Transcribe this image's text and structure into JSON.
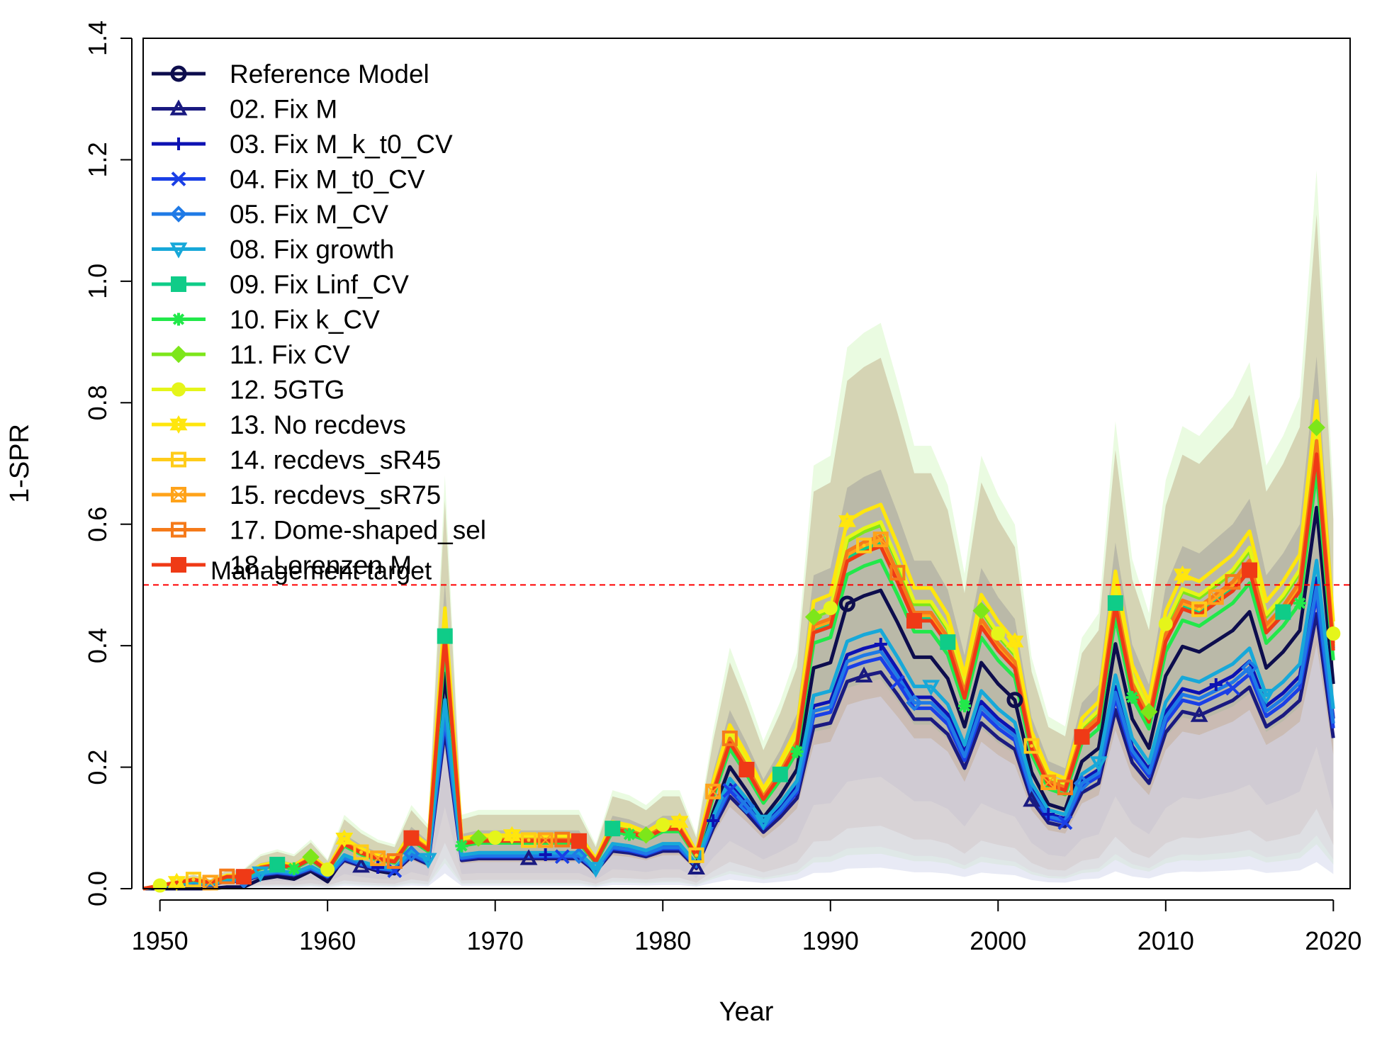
{
  "chart_data": {
    "type": "line",
    "xlabel": "Year",
    "ylabel": "1-SPR",
    "xlim": [
      1949,
      2021
    ],
    "ylim": [
      0,
      1.4
    ],
    "xticks": [
      1950,
      1960,
      1970,
      1980,
      1990,
      2000,
      2010,
      2020
    ],
    "yticks": [
      0.0,
      0.2,
      0.4,
      0.6,
      0.8,
      1.0,
      1.2,
      1.4
    ],
    "xtick_labels": [
      "1950",
      "1960",
      "1970",
      "1980",
      "1990",
      "2000",
      "2010",
      "2020"
    ],
    "ytick_labels": [
      "0.0",
      "0.2",
      "0.4",
      "0.6",
      "0.8",
      "1.0",
      "1.2",
      "1.4"
    ],
    "legend_position": "top-left",
    "reference_line": {
      "y": 0.5,
      "label": "Management target",
      "color": "#ff0000"
    },
    "x": [
      1949,
      1950,
      1951,
      1952,
      1953,
      1954,
      1955,
      1956,
      1957,
      1958,
      1959,
      1960,
      1961,
      1962,
      1963,
      1964,
      1965,
      1966,
      1967,
      1968,
      1969,
      1970,
      1971,
      1972,
      1973,
      1974,
      1975,
      1976,
      1977,
      1978,
      1979,
      1980,
      1981,
      1982,
      1983,
      1984,
      1985,
      1986,
      1987,
      1988,
      1989,
      1990,
      1991,
      1992,
      1993,
      1994,
      1995,
      1996,
      1997,
      1998,
      1999,
      2000,
      2001,
      2002,
      2003,
      2004,
      2005,
      2006,
      2007,
      2008,
      2009,
      2010,
      2011,
      2012,
      2013,
      2014,
      2015,
      2016,
      2017,
      2018,
      2019,
      2020
    ],
    "base_profile": [
      0.0,
      0.005,
      0.01,
      0.015,
      0.01,
      0.02,
      0.02,
      0.035,
      0.04,
      0.035,
      0.05,
      0.03,
      0.075,
      0.06,
      0.05,
      0.045,
      0.085,
      0.065,
      0.42,
      0.075,
      0.08,
      0.08,
      0.08,
      0.08,
      0.08,
      0.08,
      0.08,
      0.045,
      0.1,
      0.095,
      0.085,
      0.1,
      0.1,
      0.055,
      0.16,
      0.245,
      0.2,
      0.15,
      0.19,
      0.24,
      0.43,
      0.44,
      0.55,
      0.565,
      0.575,
      0.515,
      0.45,
      0.45,
      0.41,
      0.32,
      0.44,
      0.4,
      0.37,
      0.235,
      0.175,
      0.165,
      0.255,
      0.28,
      0.475,
      0.335,
      0.28,
      0.415,
      0.47,
      0.46,
      0.48,
      0.5,
      0.535,
      0.43,
      0.46,
      0.5,
      0.73,
      0.4
    ],
    "series": [
      {
        "name": "Reference Model",
        "color": "#0d0d4d",
        "marker": "circle",
        "scale": 0.88,
        "offset": -0.015,
        "markers_at": [
          1991,
          2001
        ]
      },
      {
        "name": "02. Fix M",
        "color": "#1a1a80",
        "marker": "triangle",
        "scale": 0.62,
        "offset": 0.0,
        "markers_at": [
          1962,
          1972,
          1982,
          1992,
          2002,
          2012
        ]
      },
      {
        "name": "03. Fix M_k_t0_CV",
        "color": "#0d12b3",
        "marker": "plus",
        "scale": 0.7,
        "offset": 0.0,
        "markers_at": [
          1963,
          1973,
          1983,
          1993,
          2003,
          2013
        ]
      },
      {
        "name": "04. Fix M_t0_CV",
        "color": "#1a3fe6",
        "marker": "x",
        "scale": 0.66,
        "offset": 0.0,
        "markers_at": [
          1964,
          1974,
          1984,
          1994,
          2004,
          2014
        ]
      },
      {
        "name": "05. Fix M_CV",
        "color": "#1f7ae6",
        "marker": "diamond",
        "scale": 0.68,
        "offset": 0.0,
        "markers_at": [
          1955,
          1965,
          1975,
          1985,
          1995,
          2005,
          2015
        ]
      },
      {
        "name": "08. Fix growth",
        "color": "#17a8d9",
        "marker": "triangle-down",
        "scale": 0.74,
        "offset": 0.0,
        "markers_at": [
          1956,
          1966,
          1976,
          1986,
          1996,
          2006,
          2016
        ]
      },
      {
        "name": "09. Fix Linf_CV",
        "color": "#0fcc88",
        "marker": "square-filled",
        "scale": 0.99,
        "offset": 0.0,
        "markers_at": [
          1957,
          1967,
          1977,
          1987,
          1997,
          2007,
          2017
        ]
      },
      {
        "name": "10. Fix k_CV",
        "color": "#22e84a",
        "marker": "asterisk",
        "scale": 0.94,
        "offset": 0.0,
        "markers_at": [
          1958,
          1968,
          1978,
          1988,
          1998,
          2008,
          2018
        ]
      },
      {
        "name": "11. Fix CV",
        "color": "#7de61a",
        "marker": "diamond-filled",
        "scale": 1.04,
        "offset": 0.0,
        "markers_at": [
          1959,
          1969,
          1979,
          1989,
          1999,
          2009,
          2019
        ]
      },
      {
        "name": "12. 5GTG",
        "color": "#e5f51a",
        "marker": "circle-filled",
        "scale": 1.05,
        "offset": 0.0,
        "markers_at": [
          1950,
          1960,
          1970,
          1980,
          1990,
          2000,
          2010,
          2020
        ]
      },
      {
        "name": "13. No recdevs",
        "color": "#ffe60d",
        "marker": "star",
        "scale": 1.1,
        "offset": 0.0,
        "markers_at": [
          1951,
          1961,
          1971,
          1981,
          1991,
          2001,
          2011
        ]
      },
      {
        "name": "14. recdevs_sR45",
        "color": "#ffcc1a",
        "marker": "square-dot",
        "scale": 1.0,
        "offset": 0.0,
        "markers_at": [
          1952,
          1962,
          1972,
          1982,
          1992,
          2002,
          2012
        ]
      },
      {
        "name": "15. recdevs_sR75",
        "color": "#ffa31a",
        "marker": "square-x",
        "scale": 1.0,
        "offset": 0.0,
        "markers_at": [
          1953,
          1963,
          1973,
          1983,
          1993,
          2003,
          2013
        ]
      },
      {
        "name": "17. Dome-shaped_sel",
        "color": "#f57a1a",
        "marker": "square",
        "scale": 1.01,
        "offset": 0.0,
        "markers_at": [
          1954,
          1964,
          1974,
          1984,
          1994,
          2004,
          2014
        ]
      },
      {
        "name": "18. Lorenzen M",
        "color": "#ef3a16",
        "marker": "square-filled",
        "scale": 0.98,
        "offset": 0.0,
        "markers_at": [
          1955,
          1965,
          1975,
          1985,
          1995,
          2005,
          2015
        ]
      }
    ],
    "uncertainty_bands": [
      {
        "color": "#d8f7c8",
        "opacity": 0.55,
        "upper_scale": 1.62,
        "lower_scale": 0.1
      },
      {
        "color": "#bfae88",
        "opacity": 0.5,
        "upper_scale": 1.52,
        "lower_scale": 0.18
      },
      {
        "color": "#9a9a9a",
        "opacity": 0.45,
        "upper_scale": 1.2,
        "lower_scale": 0.32
      },
      {
        "color": "#e8c0c8",
        "opacity": 0.35,
        "upper_scale": 0.6,
        "lower_scale": 0.12
      },
      {
        "color": "#d5d8ec",
        "opacity": 0.55,
        "upper_scale": 0.55,
        "lower_scale": 0.06
      }
    ]
  }
}
